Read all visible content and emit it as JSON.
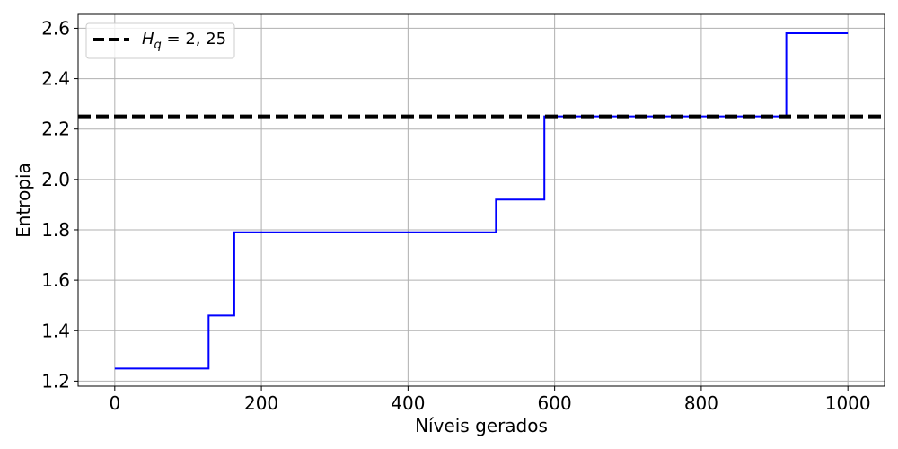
{
  "chart_data": {
    "type": "line",
    "xlabel": "Níveis gerados",
    "ylabel": "Entropia",
    "xlim": [
      -50,
      1050
    ],
    "ylim": [
      1.18,
      2.655
    ],
    "xticks": [
      0,
      200,
      400,
      600,
      800,
      1000
    ],
    "yticks": [
      1.2,
      1.4,
      1.6,
      1.8,
      2.0,
      2.2,
      2.4,
      2.6
    ],
    "xtick_labels": [
      "0",
      "200",
      "400",
      "600",
      "800",
      "1000"
    ],
    "ytick_labels": [
      "1.2",
      "1.4",
      "1.6",
      "1.8",
      "2.0",
      "2.2",
      "2.4",
      "2.6"
    ],
    "grid": true,
    "legend_position": "top-left",
    "series": [
      {
        "style": "step",
        "color": "#0000ff",
        "x": [
          0,
          128,
          128,
          163,
          163,
          520,
          520,
          586,
          586,
          916,
          916,
          1000
        ],
        "y": [
          1.25,
          1.25,
          1.46,
          1.46,
          1.79,
          1.79,
          1.92,
          1.92,
          2.25,
          2.25,
          2.58,
          2.58
        ]
      }
    ],
    "reference_line": {
      "label": "H_q = 2,25",
      "label_main": "H",
      "label_sub": "q",
      "label_rest": " = 2, 25",
      "y": 2.25,
      "color": "#000000",
      "style": "dashed"
    }
  }
}
